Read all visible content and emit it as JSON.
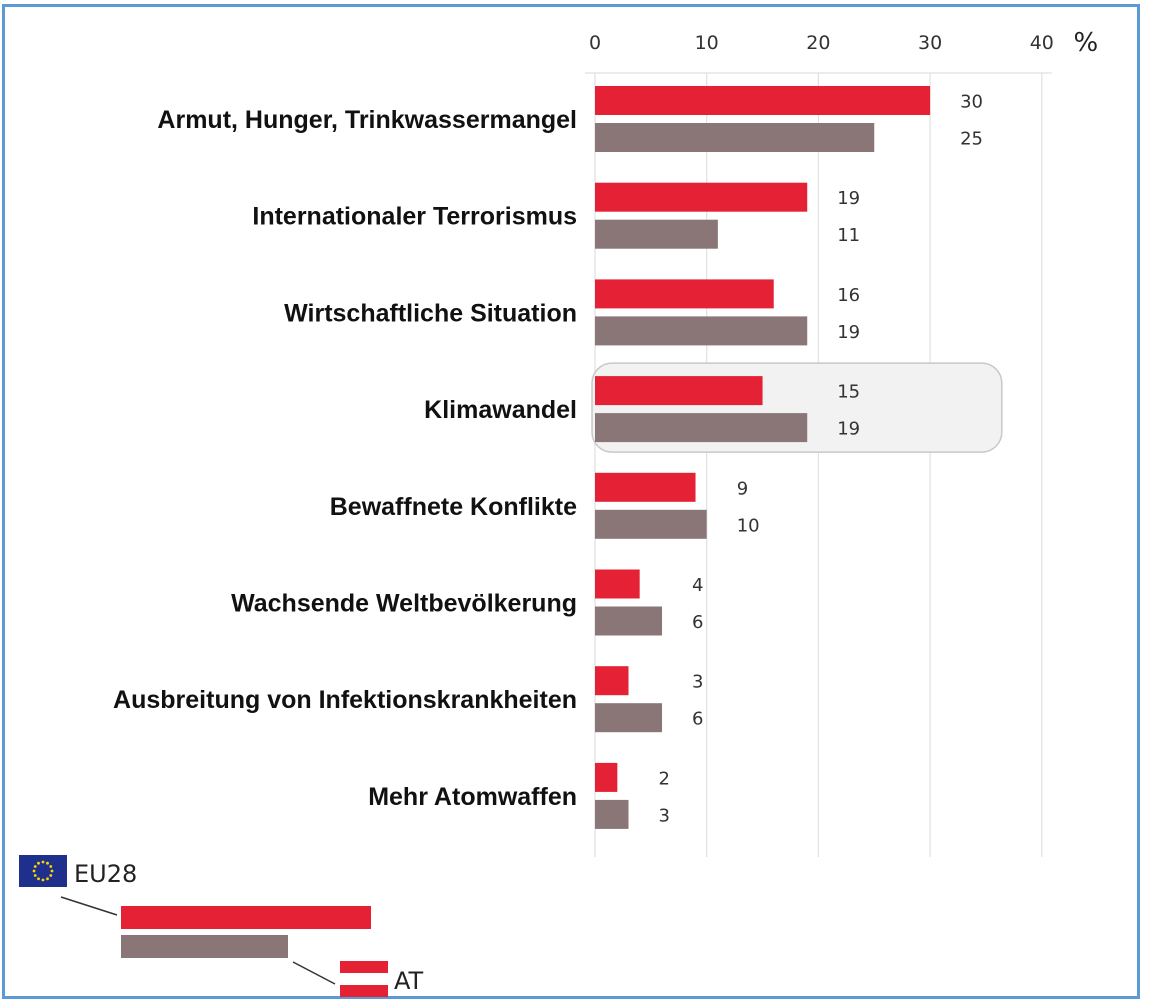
{
  "chart_data": {
    "type": "bar",
    "orientation": "horizontal",
    "title": "",
    "xlabel": "",
    "ylabel": "",
    "unit": "%",
    "xlim": [
      0,
      40
    ],
    "x_ticks": [
      0,
      10,
      20,
      30,
      40
    ],
    "grid": true,
    "categories": [
      "Armut, Hunger, Trinkwassermangel",
      "Internationaler Terrorismus",
      "Wirtschaftliche Situation",
      "Klimawandel",
      "Bewaffnete Konflikte",
      "Wachsende Weltbevölkerung",
      "Ausbreitung von Infektionskrankheiten",
      "Mehr Atomwaffen"
    ],
    "series": [
      {
        "name": "EU28",
        "color": "#e52135",
        "values": [
          30,
          19,
          16,
          15,
          9,
          4,
          3,
          2
        ]
      },
      {
        "name": "AT",
        "color": "#8a7677",
        "values": [
          25,
          11,
          19,
          19,
          10,
          6,
          6,
          3
        ]
      }
    ],
    "highlighted_category": "Klimawandel",
    "legend_position": "bottom-left"
  }
}
